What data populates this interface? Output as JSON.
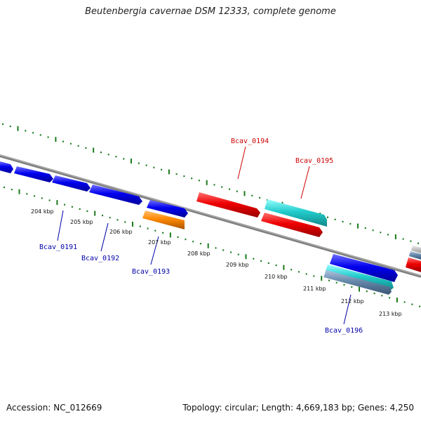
{
  "title": "Beutenbergia cavernae DSM 12333, complete genome",
  "footer": {
    "accession": "Accession: NC_012669",
    "summary": "Topology: circular; Length: 4,669,183 bp; Genes: 4,250"
  },
  "colors": {
    "backbone": "#808080",
    "tick": "#1a7a1a",
    "plus_label": "#cc0000",
    "minus_label": "#0000aa",
    "blue_gene": "#0000ee",
    "red_gene": "#ee0000",
    "cyan_gene": "#22cccc",
    "orange_gene": "#ff8800",
    "steel_gene": "#6688aa"
  },
  "ticks": [
    {
      "label": "204 kbp"
    },
    {
      "label": "205 kbp"
    },
    {
      "label": "206 kbp"
    },
    {
      "label": "207 kbp"
    },
    {
      "label": "208 kbp"
    },
    {
      "label": "209 kbp"
    },
    {
      "label": "210 kbp"
    },
    {
      "label": "211 kbp"
    },
    {
      "label": "212 kbp"
    },
    {
      "label": "213 kbp"
    }
  ],
  "gene_labels": [
    {
      "text": "Bcav_0191"
    },
    {
      "text": "Bcav_0192"
    },
    {
      "text": "Bcav_0193"
    },
    {
      "text": "Bcav_0194"
    },
    {
      "text": "Bcav_0195"
    },
    {
      "text": "Bcav_0196"
    }
  ]
}
